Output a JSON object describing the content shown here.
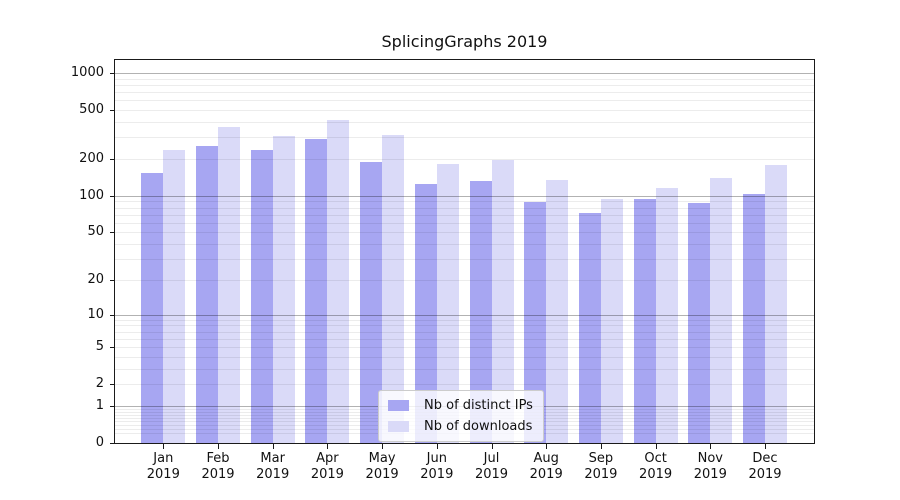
{
  "chart_data": {
    "type": "bar",
    "title": "SplicingGraphs 2019",
    "x": {
      "months": [
        "Jan",
        "Feb",
        "Mar",
        "Apr",
        "May",
        "Jun",
        "Jul",
        "Aug",
        "Sep",
        "Oct",
        "Nov",
        "Dec"
      ],
      "year_label": "2019"
    },
    "y": {
      "scale": "log10(1+value)",
      "tick_values": [
        0,
        1,
        2,
        5,
        10,
        20,
        50,
        100,
        200,
        500,
        1000
      ],
      "top_value": 1280
    },
    "series": [
      {
        "name": "Nb of distinct IPs",
        "color": "#a7a6f2",
        "values": [
          154,
          257,
          238,
          293,
          188,
          126,
          133,
          89,
          72,
          95,
          88,
          103
        ]
      },
      {
        "name": "Nb of downloads",
        "color": "#dadaf8",
        "values": [
          237,
          365,
          305,
          412,
          315,
          183,
          195,
          135,
          95,
          115,
          139,
          180
        ]
      }
    ],
    "legend": {
      "position": "inside-bottom-center",
      "entries": [
        "Nb of distinct IPs",
        "Nb of downloads"
      ]
    },
    "grid": {
      "major_line_values": [
        1,
        10,
        100,
        1000
      ],
      "minor_line_rule": "mantissas 2-9 of each decade from 0.1 to 100"
    },
    "colors": {
      "spine": "#1a1a1a",
      "major_grid": "rgba(0,0,0,0.30)",
      "minor_grid": "rgba(0,0,0,0.075)",
      "legend_border": "#cccccc"
    }
  }
}
